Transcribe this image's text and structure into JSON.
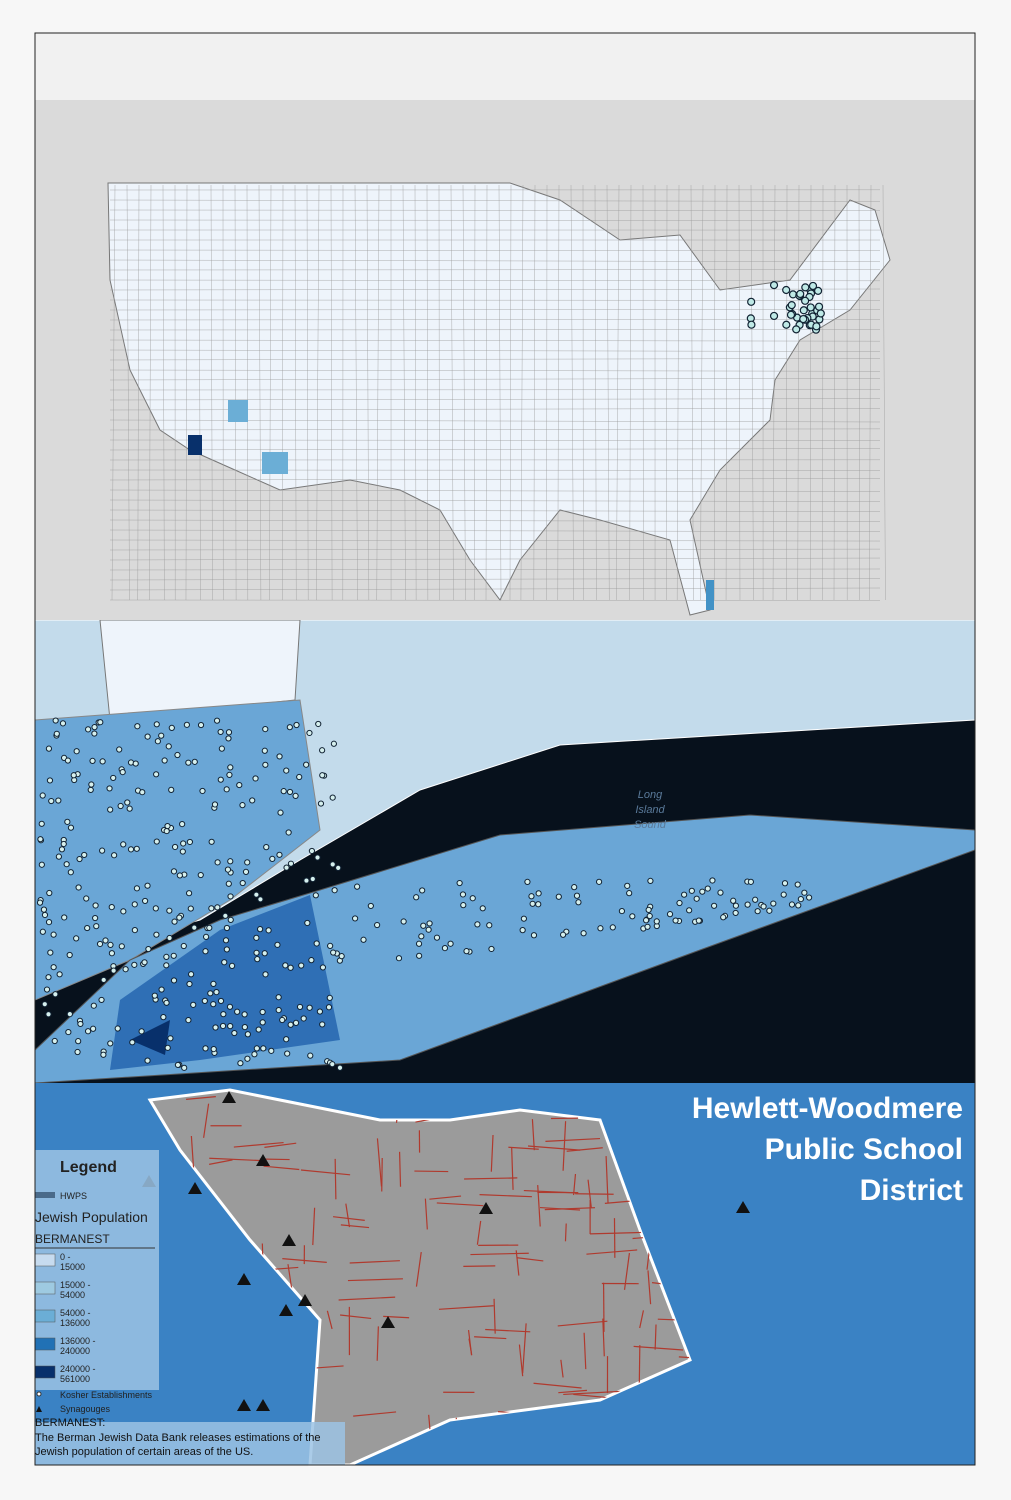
{
  "sound_label": [
    "Long",
    "Island",
    "Sound"
  ],
  "district_title": [
    "Hewlett-Woodmere",
    "Public School",
    "District"
  ],
  "legend": {
    "title": "Legend",
    "layer": "HWPS",
    "group_title": "Jewish Population",
    "field": "BERMANEST",
    "classes": [
      [
        "0 -",
        "15000"
      ],
      [
        "15000 -",
        "54000"
      ],
      [
        "54000 -",
        "136000"
      ],
      [
        "136000 -",
        "240000"
      ],
      [
        "240000 -",
        "561000"
      ]
    ],
    "kosher": "Kosher Establishments",
    "synagogues": "Synagouges",
    "note_title": "BERMANEST:",
    "note": [
      "The Berman Jewish Data Bank releases estimations of the",
      "Jewish population of certain areas of the US."
    ]
  }
}
